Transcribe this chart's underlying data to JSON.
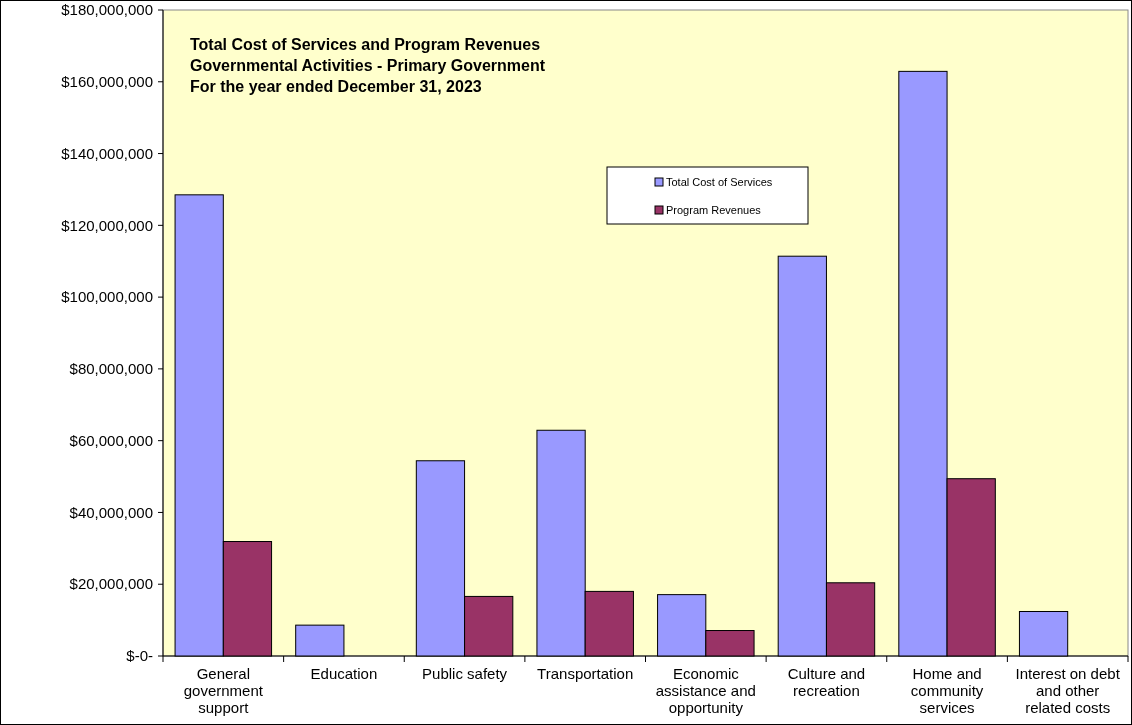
{
  "chart_data": {
    "type": "bar",
    "title": "Total Cost of Services and Program Revenues",
    "subtitle": "Governmental Activities - Primary Government\nFor the year ended December 31, 2023",
    "categories": [
      "General\ngovernment\nsupport",
      "Education",
      "Public safety",
      "Transportation",
      "Economic\nassistance and\nopportunity",
      "Culture and\nrecreation",
      "Home and\ncommunity\nservices",
      "Interest on debt\nand other\nrelated costs"
    ],
    "series": [
      {
        "name": "Total Cost of Services",
        "color": "#9999ff",
        "values": [
          128500000,
          8600000,
          54400000,
          62900000,
          17100000,
          111400000,
          162900000,
          12400000
        ]
      },
      {
        "name": "Program Revenues",
        "color": "#993366",
        "values": [
          31900000,
          null,
          16600000,
          18000000,
          7100000,
          20400000,
          49400000,
          null
        ]
      }
    ],
    "ylim": [
      0,
      180000000
    ],
    "yticks": [
      {
        "value": 0,
        "label": "$-0-"
      },
      {
        "value": 20000000,
        "label": "$20,000,000"
      },
      {
        "value": 40000000,
        "label": "$40,000,000"
      },
      {
        "value": 60000000,
        "label": "$60,000,000"
      },
      {
        "value": 80000000,
        "label": "$80,000,000"
      },
      {
        "value": 100000000,
        "label": "$100,000,000"
      },
      {
        "value": 120000000,
        "label": "$120,000,000"
      },
      {
        "value": 140000000,
        "label": "$140,000,000"
      },
      {
        "value": 160000000,
        "label": "$160,000,000"
      },
      {
        "value": 180000000,
        "label": "$180,000,000"
      }
    ],
    "legend": "top right"
  }
}
